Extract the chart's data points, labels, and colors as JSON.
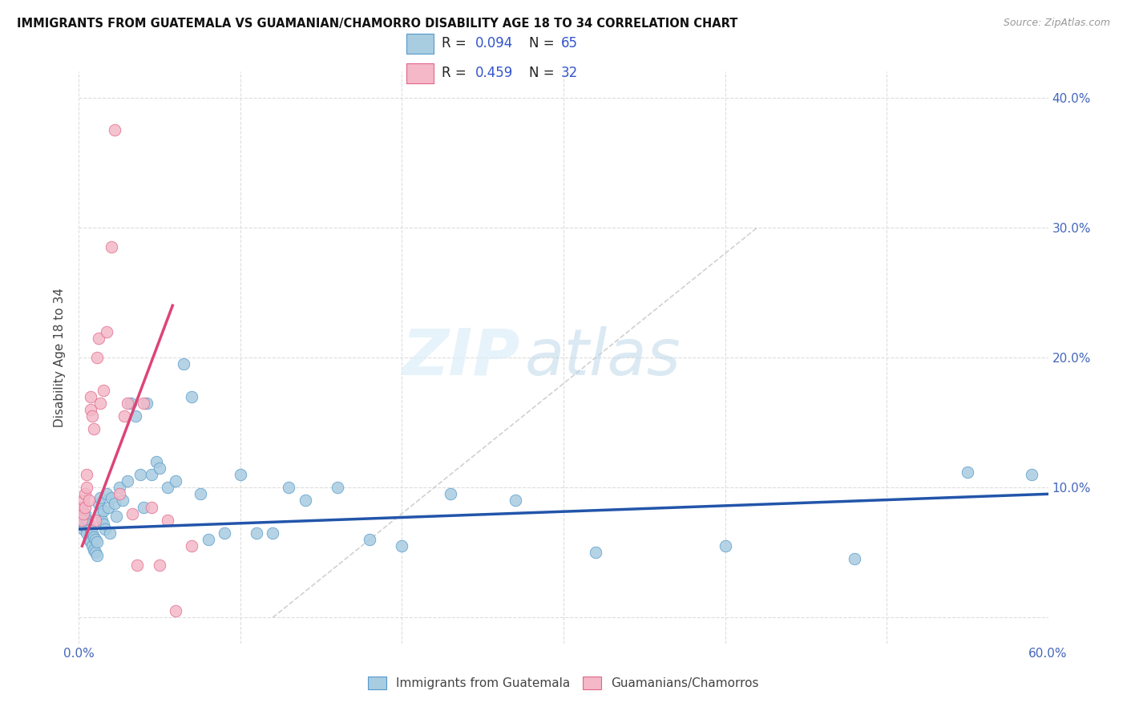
{
  "title": "IMMIGRANTS FROM GUATEMALA VS GUAMANIAN/CHAMORRO DISABILITY AGE 18 TO 34 CORRELATION CHART",
  "source": "Source: ZipAtlas.com",
  "ylabel": "Disability Age 18 to 34",
  "xlim": [
    0.0,
    0.6
  ],
  "ylim": [
    -0.02,
    0.42
  ],
  "color_blue": "#a8cce0",
  "color_pink": "#f4b8c8",
  "edge_blue": "#5599cc",
  "edge_pink": "#e06688",
  "line_blue": "#2255aa",
  "line_pink": "#dd4477",
  "line_diag_color": "#cccccc",
  "watermark_zip": "ZIP",
  "watermark_atlas": "atlas",
  "blue_scatter_x": [
    0.002,
    0.003,
    0.003,
    0.004,
    0.004,
    0.005,
    0.005,
    0.006,
    0.006,
    0.007,
    0.007,
    0.008,
    0.008,
    0.009,
    0.009,
    0.01,
    0.01,
    0.011,
    0.011,
    0.012,
    0.013,
    0.013,
    0.014,
    0.015,
    0.015,
    0.016,
    0.017,
    0.018,
    0.019,
    0.02,
    0.022,
    0.023,
    0.025,
    0.027,
    0.03,
    0.032,
    0.035,
    0.038,
    0.04,
    0.042,
    0.045,
    0.048,
    0.05,
    0.055,
    0.06,
    0.065,
    0.07,
    0.075,
    0.08,
    0.09,
    0.1,
    0.11,
    0.12,
    0.13,
    0.14,
    0.16,
    0.18,
    0.2,
    0.23,
    0.27,
    0.32,
    0.4,
    0.48,
    0.55,
    0.59
  ],
  "blue_scatter_y": [
    0.075,
    0.068,
    0.078,
    0.07,
    0.08,
    0.065,
    0.075,
    0.06,
    0.072,
    0.058,
    0.068,
    0.055,
    0.065,
    0.052,
    0.062,
    0.05,
    0.06,
    0.048,
    0.058,
    0.088,
    0.08,
    0.092,
    0.075,
    0.082,
    0.072,
    0.068,
    0.095,
    0.085,
    0.065,
    0.092,
    0.088,
    0.078,
    0.1,
    0.09,
    0.105,
    0.165,
    0.155,
    0.11,
    0.085,
    0.165,
    0.11,
    0.12,
    0.115,
    0.1,
    0.105,
    0.195,
    0.17,
    0.095,
    0.06,
    0.065,
    0.11,
    0.065,
    0.065,
    0.1,
    0.09,
    0.1,
    0.06,
    0.055,
    0.095,
    0.09,
    0.05,
    0.055,
    0.045,
    0.112,
    0.11
  ],
  "pink_scatter_x": [
    0.002,
    0.002,
    0.003,
    0.003,
    0.004,
    0.004,
    0.005,
    0.005,
    0.006,
    0.007,
    0.007,
    0.008,
    0.009,
    0.01,
    0.011,
    0.012,
    0.013,
    0.015,
    0.017,
    0.02,
    0.022,
    0.025,
    0.028,
    0.03,
    0.033,
    0.036,
    0.04,
    0.045,
    0.05,
    0.055,
    0.06,
    0.07
  ],
  "pink_scatter_y": [
    0.075,
    0.085,
    0.09,
    0.08,
    0.085,
    0.095,
    0.1,
    0.11,
    0.09,
    0.16,
    0.17,
    0.155,
    0.145,
    0.075,
    0.2,
    0.215,
    0.165,
    0.175,
    0.22,
    0.285,
    0.375,
    0.095,
    0.155,
    0.165,
    0.08,
    0.04,
    0.165,
    0.085,
    0.04,
    0.075,
    0.005,
    0.055
  ],
  "blue_line_x": [
    0.0,
    0.6
  ],
  "blue_line_y": [
    0.068,
    0.095
  ],
  "pink_line_x": [
    0.002,
    0.058
  ],
  "pink_line_y": [
    0.055,
    0.24
  ],
  "diag_line_x": [
    0.12,
    0.42
  ],
  "diag_line_y": [
    0.0,
    0.3
  ]
}
